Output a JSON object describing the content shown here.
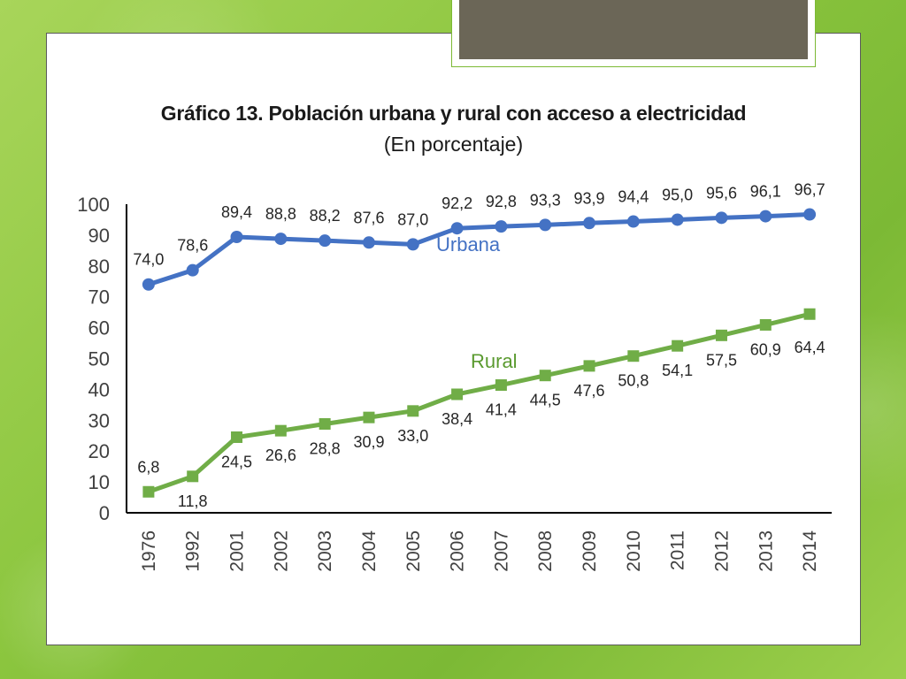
{
  "slide": {
    "background_color": "#8cc63f",
    "tab_color": "#6b6657"
  },
  "chart_data": {
    "type": "line",
    "title": "Gráfico 13. Población urbana y rural con acceso a electricidad",
    "subtitle": "(En porcentaje)",
    "xlabel": "",
    "ylabel": "",
    "ylim": [
      0,
      100
    ],
    "y_ticks": [
      "0",
      "10",
      "20",
      "30",
      "40",
      "50",
      "60",
      "70",
      "80",
      "90",
      "100"
    ],
    "grid": false,
    "categories": [
      "1976",
      "1992",
      "2001",
      "2002",
      "2003",
      "2004",
      "2005",
      "2006",
      "2007",
      "2008",
      "2009",
      "2010",
      "2011",
      "2012",
      "2013",
      "2014"
    ],
    "series": [
      {
        "name": "Urbana",
        "color": "#4472c4",
        "marker": "circle",
        "values": [
          74.0,
          78.6,
          89.4,
          88.8,
          88.2,
          87.6,
          87.0,
          92.2,
          92.8,
          93.3,
          93.9,
          94.4,
          95.0,
          95.6,
          96.1,
          96.7
        ],
        "labels": [
          "74,0",
          "78,6",
          "89,4",
          "88,8",
          "88,2",
          "87,6",
          "87,0",
          "92,2",
          "92,8",
          "93,3",
          "93,9",
          "94,4",
          "95,0",
          "95,6",
          "96,1",
          "96,7"
        ]
      },
      {
        "name": "Rural",
        "color": "#70ad47",
        "marker": "square",
        "values": [
          6.8,
          11.8,
          24.5,
          26.6,
          28.8,
          30.9,
          33.0,
          38.4,
          41.4,
          44.5,
          47.6,
          50.8,
          54.1,
          57.5,
          60.9,
          64.4
        ],
        "labels": [
          "6,8",
          "11,8",
          "24,5",
          "26,6",
          "28,8",
          "30,9",
          "33,0",
          "38,4",
          "41,4",
          "44,5",
          "47,6",
          "50,8",
          "54,1",
          "57,5",
          "60,9",
          "64,4"
        ]
      }
    ]
  }
}
